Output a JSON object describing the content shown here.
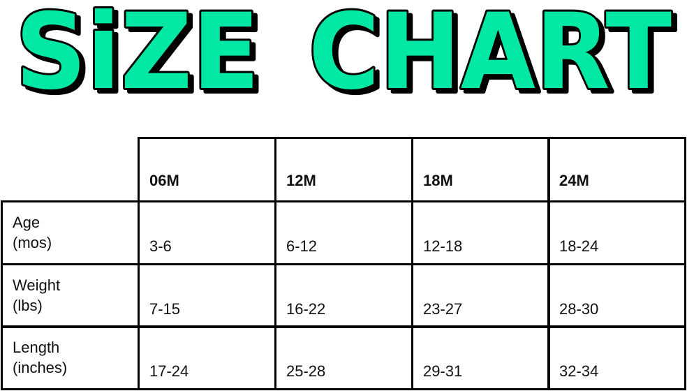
{
  "title": "SiZE CHART",
  "title_words": [
    "SiZE",
    "CHART"
  ],
  "colors": {
    "title_fill": "#00E8A4",
    "title_outline": "#000000",
    "grid": "#000000"
  },
  "chart_data": {
    "type": "table",
    "title": "SiZE CHART",
    "columns": [
      "06M",
      "12M",
      "18M",
      "24M"
    ],
    "rows": [
      {
        "label": "Age\n(mos)",
        "values": [
          "3-6",
          "6-12",
          "12-18",
          "18-24"
        ]
      },
      {
        "label": "Weight\n(lbs)",
        "values": [
          "7-15",
          "16-22",
          "23-27",
          "28-30"
        ]
      },
      {
        "label": "Length\n(inches)",
        "values": [
          "17-24",
          "25-28",
          "29-31",
          "32-34"
        ]
      }
    ]
  }
}
